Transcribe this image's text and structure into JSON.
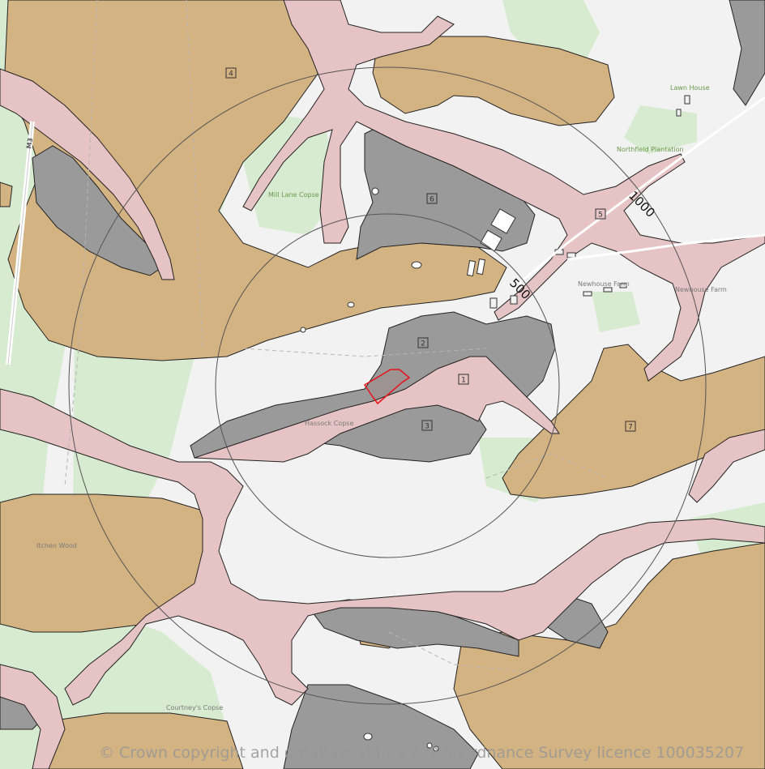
{
  "colors": {
    "background": "#f2f2f2",
    "woodland": "#d6ebd0",
    "brown_zone": "#d4b382",
    "grey_zone": "#9a9a9a",
    "pink_zone": "#e6c3c4",
    "site_outline": "#e8121a",
    "ring": "#555555"
  },
  "rings": [
    {
      "label": "500"
    },
    {
      "label": "1000"
    }
  ],
  "zones": [
    {
      "id": "1",
      "label": "1"
    },
    {
      "id": "2",
      "label": "2"
    },
    {
      "id": "3",
      "label": "3"
    },
    {
      "id": "4",
      "label": "4"
    },
    {
      "id": "5",
      "label": "5"
    },
    {
      "id": "6",
      "label": "6"
    },
    {
      "id": "7",
      "label": "7"
    }
  ],
  "places": {
    "lawn_house": "Lawn House",
    "northfield_plantation": "Northfield Plantation",
    "mill_lane_copse": "Mill Lane Copse",
    "newhouse_farm": "Newhouse Farm",
    "newhouse_farm_right": "Newhouse Farm",
    "hassock_copse": "Hassock Copse",
    "itchen_wood": "Itchen Wood",
    "courtneys_copse": "Courtney's Copse"
  },
  "roads": {
    "m3": "M3"
  },
  "copyright": "© Crown copyright and database rights 2022. Ordnance Survey licence 100035207"
}
